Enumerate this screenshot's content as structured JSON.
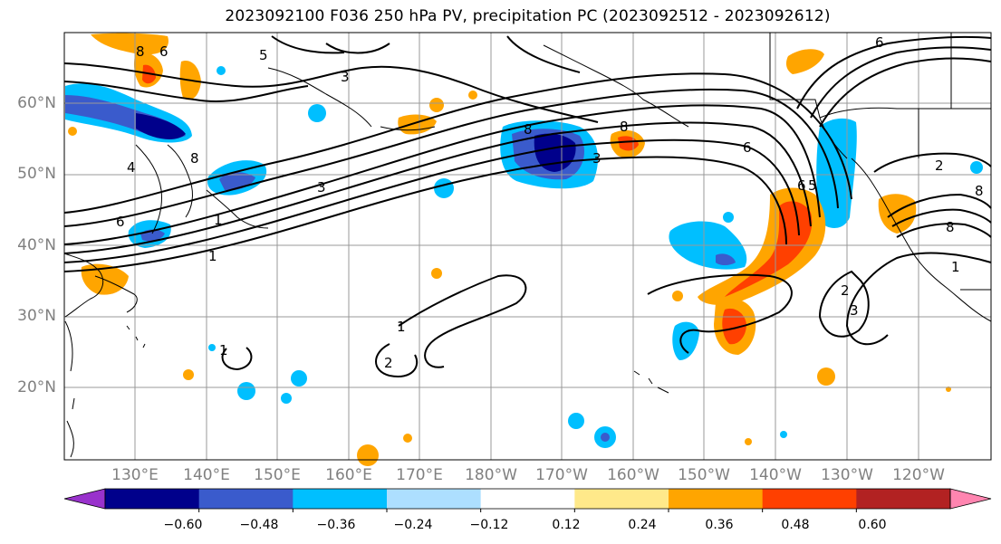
{
  "title": "2023092100 F036 250 hPa PV, precipitation PC (2023092512 - 2023092612)",
  "lat_labels": [
    "60°N",
    "50°N",
    "40°N",
    "30°N",
    "20°N"
  ],
  "lon_labels": [
    "130°E",
    "140°E",
    "150°E",
    "160°E",
    "170°E",
    "180°W",
    "170°W",
    "160°W",
    "150°W",
    "140°W",
    "130°W",
    "120°W"
  ],
  "colorbar": {
    "colors": [
      "#9932CC",
      "#00008B",
      "#3A5BCC",
      "#00BFFF",
      "#ADDFFF",
      "#FFFFFF",
      "#FFE98A",
      "#FFA500",
      "#FF4000",
      "#B22222",
      "#FF85B0"
    ],
    "ticks": [
      "−0.60",
      "−0.48",
      "−0.36",
      "−0.24",
      "−0.12",
      "0.12",
      "0.24",
      "0.36",
      "0.48",
      "0.60"
    ]
  },
  "contour_labels": [
    "5",
    "3",
    "8",
    "6",
    "8",
    "4",
    "8",
    "3",
    "6",
    "1",
    "3",
    "8",
    "6",
    "6",
    "5",
    "6",
    "2",
    "8",
    "1",
    "1",
    "3",
    "2",
    "1",
    "2",
    "8",
    "1"
  ],
  "colors": {
    "grid": "#999999",
    "coast": "#000000",
    "contour": "#000000",
    "axis_label": "#808080"
  }
}
